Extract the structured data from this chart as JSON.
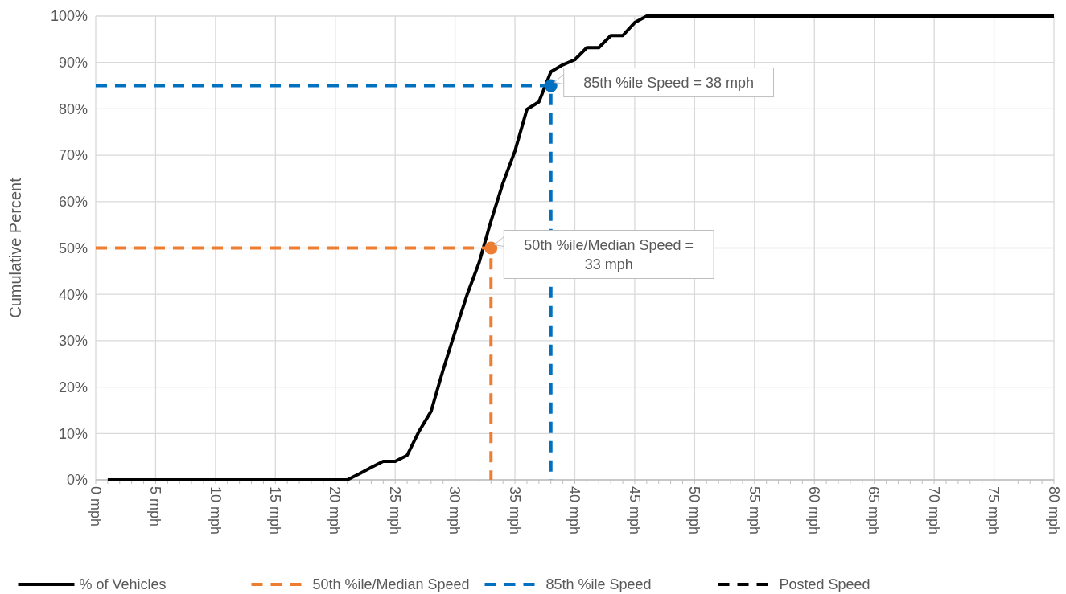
{
  "chart_data": {
    "type": "line",
    "ylabel": "Cumulative Percent",
    "xlim": [
      0,
      80
    ],
    "xticks": [
      {
        "value": 0,
        "label": "0 mph"
      },
      {
        "value": 5,
        "label": "5 mph"
      },
      {
        "value": 10,
        "label": "10 mph"
      },
      {
        "value": 15,
        "label": "15 mph"
      },
      {
        "value": 20,
        "label": "20 mph"
      },
      {
        "value": 25,
        "label": "25 mph"
      },
      {
        "value": 30,
        "label": "30 mph"
      },
      {
        "value": 35,
        "label": "35 mph"
      },
      {
        "value": 40,
        "label": "40 mph"
      },
      {
        "value": 45,
        "label": "45 mph"
      },
      {
        "value": 50,
        "label": "50 mph"
      },
      {
        "value": 55,
        "label": "55 mph"
      },
      {
        "value": 60,
        "label": "60 mph"
      },
      {
        "value": 65,
        "label": "65 mph"
      },
      {
        "value": 70,
        "label": "70 mph"
      },
      {
        "value": 75,
        "label": "75 mph"
      },
      {
        "value": 80,
        "label": "80 mph"
      }
    ],
    "ylim": [
      0,
      100
    ],
    "yticks": [
      {
        "value": 0,
        "label": "0%"
      },
      {
        "value": 10,
        "label": "10%"
      },
      {
        "value": 20,
        "label": "20%"
      },
      {
        "value": 30,
        "label": "30%"
      },
      {
        "value": 40,
        "label": "40%"
      },
      {
        "value": 50,
        "label": "50%"
      },
      {
        "value": 60,
        "label": "60%"
      },
      {
        "value": 70,
        "label": "70%"
      },
      {
        "value": 80,
        "label": "80%"
      },
      {
        "value": 90,
        "label": "90%"
      },
      {
        "value": 100,
        "label": "100%"
      }
    ],
    "grid": true,
    "legend": "bottom",
    "series": [
      {
        "name": "% of Vehicles",
        "color": "#000000",
        "line_style": "solid",
        "x": [
          1,
          21,
          22,
          23,
          24,
          25,
          26,
          27,
          28,
          29,
          30,
          31,
          32,
          33,
          34,
          35,
          36,
          37,
          38,
          39,
          40,
          41,
          42,
          43,
          44,
          45,
          46,
          80
        ],
        "values": [
          0,
          0,
          1.3,
          2.7,
          4,
          4,
          5.3,
          10.5,
          14.8,
          23.7,
          31.9,
          39.9,
          46.8,
          55.8,
          64,
          70.9,
          79.9,
          81.5,
          88,
          89.5,
          90.6,
          93.2,
          93.2,
          95.8,
          95.8,
          98.6,
          100,
          100
        ]
      },
      {
        "name": "50th %ile/Median Speed",
        "color": "#ed7d31",
        "line_style": "dashed",
        "x": [
          0,
          33,
          33
        ],
        "values": [
          50,
          50,
          0
        ]
      },
      {
        "name": "85th %ile Speed",
        "color": "#0070c0",
        "line_style": "dashed",
        "x": [
          0,
          38,
          38
        ],
        "values": [
          85,
          85,
          0
        ]
      },
      {
        "name": "Posted Speed",
        "color": "#000000",
        "line_style": "dashed"
      },
      {
        "type": "scatter",
        "color": "#ed7d31",
        "marker": "circle",
        "x": [
          33
        ],
        "values": [
          50
        ]
      },
      {
        "type": "scatter",
        "color": "#0070c0",
        "marker": "circle",
        "x": [
          38
        ],
        "values": [
          85
        ]
      }
    ],
    "annotations": [
      {
        "text": "50th %ile/Median Speed = 33 mph",
        "x": 33,
        "y": 50
      },
      {
        "text": "85th %ile Speed = 38 mph",
        "x": 38,
        "y": 85
      }
    ]
  }
}
